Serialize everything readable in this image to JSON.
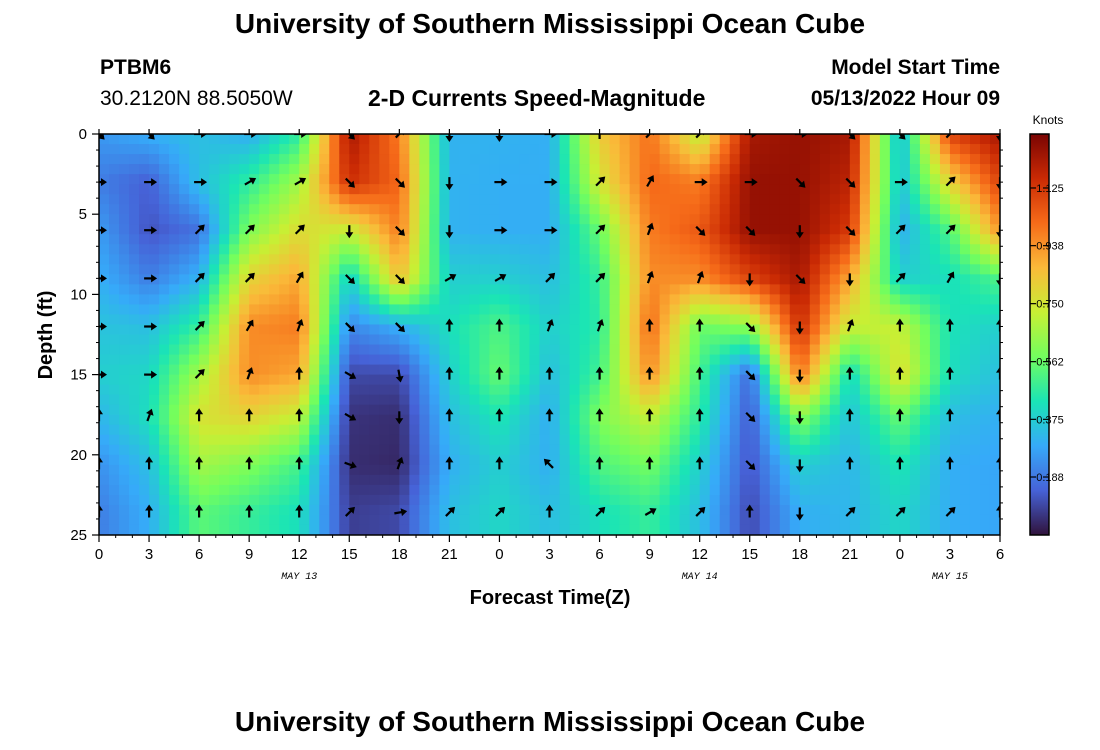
{
  "header": {
    "title": "University of Southern Mississippi Ocean Cube",
    "station": "PTBM6",
    "coords": "30.2120N  88.5050W",
    "plot_title": "2-D Currents Speed-Magnitude",
    "model_label": "Model Start Time",
    "model_time": "05/13/2022 Hour 09"
  },
  "footer": {
    "title": "University of Southern Mississippi Ocean Cube"
  },
  "chart_data": {
    "type": "heatmap",
    "title": "2-D Currents Speed-Magnitude",
    "xlabel": "Forecast Time(Z)",
    "ylabel": "Depth (ft)",
    "x_hours_from_start": [
      0,
      3,
      6,
      9,
      12,
      15,
      18,
      21,
      24,
      27,
      30,
      33,
      36,
      39,
      42,
      45,
      48,
      51,
      54
    ],
    "x_tick_labels": [
      "0",
      "3",
      "6",
      "9",
      "12",
      "15",
      "18",
      "21",
      "0",
      "3",
      "6",
      "9",
      "12",
      "15",
      "18",
      "21",
      "0",
      "3",
      "6"
    ],
    "date_labels": [
      {
        "label": "MAY 13",
        "hour": 12
      },
      {
        "label": "MAY 14",
        "hour": 36
      },
      {
        "label": "MAY 15",
        "hour": 51
      }
    ],
    "xlim": [
      0,
      54
    ],
    "y_depths": [
      0,
      3,
      6,
      9,
      12,
      15,
      17.6,
      20.6,
      23.6
    ],
    "y_ticks": [
      0,
      5,
      10,
      15,
      20,
      25
    ],
    "ylim": [
      0,
      25
    ],
    "speed_knots": [
      [
        0.25,
        0.3,
        0.34,
        0.3,
        0.47,
        1.22,
        0.98,
        0.31,
        0.31,
        0.3,
        0.82,
        1.0,
        0.7,
        1.22,
        1.25,
        1.22,
        0.32,
        1.1,
        1.22
      ],
      [
        0.2,
        0.14,
        0.34,
        0.47,
        0.66,
        1.15,
        1.02,
        0.31,
        0.3,
        0.3,
        0.75,
        1.02,
        0.98,
        1.25,
        1.25,
        1.18,
        0.34,
        0.8,
        1.1
      ],
      [
        0.26,
        0.12,
        0.18,
        0.6,
        0.78,
        0.72,
        0.98,
        0.31,
        0.3,
        0.3,
        0.56,
        0.98,
        1.05,
        1.25,
        1.25,
        1.12,
        0.3,
        0.52,
        0.94
      ],
      [
        0.3,
        0.2,
        0.31,
        0.8,
        0.9,
        0.38,
        0.85,
        0.38,
        0.38,
        0.34,
        0.48,
        0.95,
        0.95,
        1.1,
        1.22,
        0.9,
        0.38,
        0.42,
        0.52
      ],
      [
        0.35,
        0.34,
        0.48,
        0.95,
        0.98,
        0.22,
        0.3,
        0.42,
        0.52,
        0.38,
        0.46,
        1.02,
        0.56,
        0.62,
        1.15,
        0.72,
        0.72,
        0.43,
        0.38
      ],
      [
        0.38,
        0.4,
        0.66,
        0.95,
        0.9,
        0.1,
        0.1,
        0.38,
        0.56,
        0.34,
        0.5,
        0.95,
        0.5,
        0.16,
        1.0,
        0.4,
        0.78,
        0.42,
        0.34
      ],
      [
        0.32,
        0.42,
        0.76,
        0.8,
        0.72,
        0.06,
        0.05,
        0.34,
        0.44,
        0.3,
        0.6,
        0.72,
        0.46,
        0.13,
        0.62,
        0.35,
        0.56,
        0.34,
        0.3
      ],
      [
        0.24,
        0.34,
        0.66,
        0.6,
        0.5,
        0.05,
        0.04,
        0.3,
        0.38,
        0.3,
        0.52,
        0.58,
        0.38,
        0.12,
        0.38,
        0.32,
        0.44,
        0.3,
        0.28
      ],
      [
        0.2,
        0.3,
        0.54,
        0.48,
        0.42,
        0.08,
        0.1,
        0.34,
        0.4,
        0.34,
        0.42,
        0.48,
        0.34,
        0.1,
        0.3,
        0.32,
        0.4,
        0.3,
        0.28
      ]
    ],
    "direction_deg": [
      [
        135,
        135,
        90,
        90,
        90,
        135,
        45,
        180,
        180,
        90,
        0,
        45,
        45,
        90,
        90,
        135,
        135,
        45,
        180
      ],
      [
        90,
        90,
        90,
        60,
        60,
        135,
        135,
        180,
        90,
        90,
        45,
        30,
        90,
        90,
        135,
        135,
        90,
        45,
        180
      ],
      [
        90,
        90,
        45,
        45,
        45,
        180,
        135,
        180,
        90,
        90,
        45,
        20,
        135,
        135,
        180,
        135,
        45,
        45,
        180
      ],
      [
        90,
        90,
        45,
        45,
        30,
        135,
        135,
        60,
        60,
        45,
        45,
        20,
        20,
        180,
        135,
        180,
        45,
        30,
        180
      ],
      [
        90,
        90,
        45,
        30,
        20,
        135,
        135,
        0,
        0,
        20,
        20,
        0,
        0,
        135,
        180,
        20,
        0,
        0,
        0
      ],
      [
        90,
        90,
        45,
        20,
        0,
        120,
        170,
        0,
        0,
        0,
        0,
        0,
        0,
        135,
        180,
        0,
        0,
        0,
        0
      ],
      [
        0,
        20,
        0,
        0,
        0,
        120,
        180,
        0,
        0,
        0,
        0,
        0,
        0,
        135,
        180,
        0,
        0,
        0,
        0
      ],
      [
        0,
        0,
        0,
        0,
        0,
        110,
        20,
        0,
        0,
        315,
        0,
        0,
        0,
        135,
        180,
        0,
        0,
        0,
        0
      ],
      [
        0,
        0,
        0,
        0,
        0,
        45,
        80,
        45,
        45,
        0,
        45,
        60,
        45,
        0,
        180,
        45,
        45,
        45,
        0
      ]
    ],
    "colorbar": {
      "label": "Knots",
      "ticks": [
        0.188,
        0.375,
        0.562,
        0.75,
        0.938,
        1.125
      ],
      "tick_labels": [
        "0.188",
        "0.375",
        "0.562",
        "0.750",
        "0.938",
        "1.125"
      ],
      "range": [
        0.0,
        1.3
      ],
      "colormap": [
        "#30123b",
        "#4662d7",
        "#36aaf9",
        "#1ae4b6",
        "#72fe5e",
        "#c8ef34",
        "#faba39",
        "#f66b19",
        "#ca2a04",
        "#7a0403"
      ]
    }
  }
}
